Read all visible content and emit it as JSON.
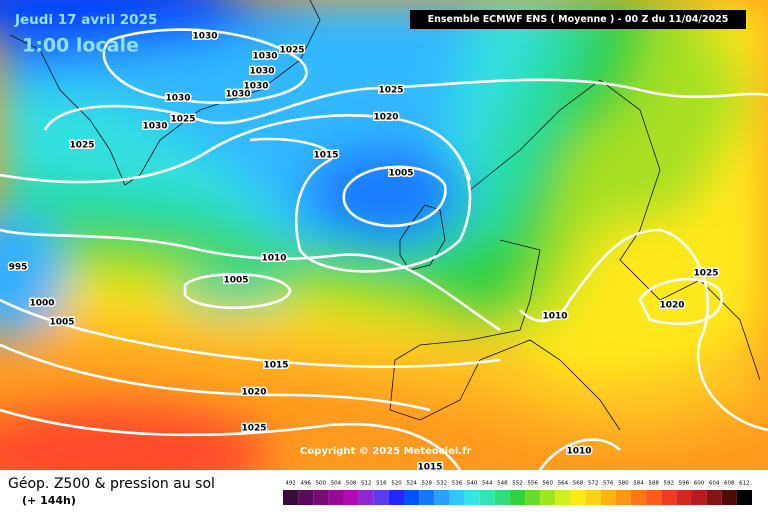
{
  "header": {
    "date": "Jeudi 17 avril 2025",
    "time": "1:00 locale",
    "model": "Ensemble ECMWF ENS  ( Moyenne )  -  00 Z du 11/04/2025"
  },
  "isobar_labels": [
    "1030",
    "1030",
    "1025",
    "1030",
    "1030",
    "1030",
    "1030",
    "1030",
    "1025",
    "1025",
    "1025",
    "1020",
    "1015",
    "1005",
    "1010",
    "1005",
    "995",
    "1000",
    "1005",
    "1015",
    "1020",
    "1025",
    "1010",
    "1025",
    "1020",
    "1010",
    "1015"
  ],
  "copyright": "Copyright © 2025 Meteociel.fr",
  "footer": {
    "title": "Géop. Z500 & pression au sol",
    "subtitle": "(+ 144h)"
  },
  "legend": {
    "levels": [
      492,
      496,
      500,
      504,
      508,
      512,
      516,
      520,
      524,
      528,
      532,
      536,
      540,
      544,
      548,
      552,
      556,
      560,
      564,
      568,
      572,
      576,
      580,
      584,
      588,
      592,
      596,
      600,
      604,
      608,
      612
    ],
    "colors": [
      "#3c0a3c",
      "#5a0a5a",
      "#780a78",
      "#960a96",
      "#b40ab4",
      "#8c28d2",
      "#5a3cf0",
      "#1e28ff",
      "#0050ff",
      "#1478ff",
      "#28a0ff",
      "#32c8ff",
      "#32e6e6",
      "#32e6b4",
      "#32dc78",
      "#32d23c",
      "#64dc28",
      "#a0e61e",
      "#d2f01e",
      "#ffeb14",
      "#ffd214",
      "#ffb414",
      "#ff9614",
      "#ff7814",
      "#ff5a1e",
      "#f03c1e",
      "#d2281e",
      "#b41e1e",
      "#821414",
      "#500a0a",
      "#000000"
    ]
  }
}
